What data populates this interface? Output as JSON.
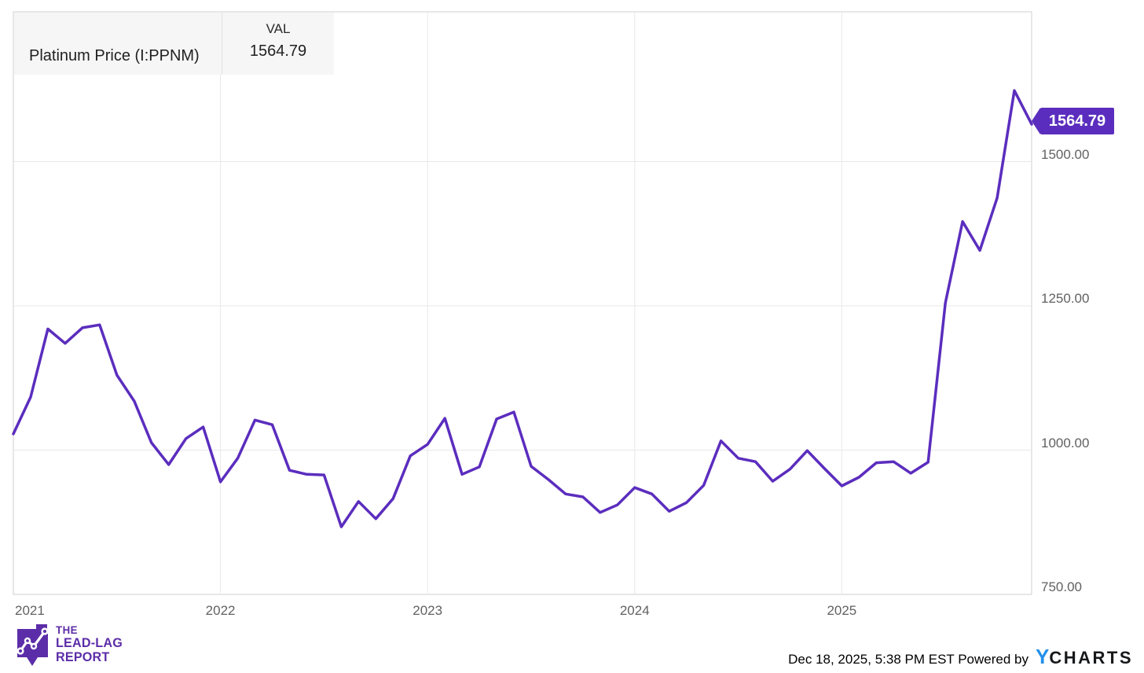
{
  "legend": {
    "series_label": "Platinum Price (I:PPNM)",
    "val_header": "VAL",
    "val_value": "1564.79"
  },
  "value_badge": {
    "text": "1564.79"
  },
  "footer": {
    "credit_text": "Dec 18, 2025, 5:38 PM EST Powered by",
    "brand_y": "Y",
    "brand_rest": "CHARTS",
    "logo_line1": "THE",
    "logo_line2": "LEAD-LAG",
    "logo_line3": "REPORT"
  },
  "colors": {
    "line": "#5B2DBE",
    "badge_bg": "#5B2DBE",
    "logo_purple": "#5C2DA8",
    "brand_blue": "#2490EA",
    "gridline": "#e8e8e8",
    "plot_border": "#cfcfcf",
    "tick_text": "#616161"
  },
  "chart_data": {
    "type": "line",
    "title": "Platinum Price (I:PPNM)",
    "x": [
      "2021-01",
      "2021-02",
      "2021-03",
      "2021-04",
      "2021-05",
      "2021-06",
      "2021-07",
      "2021-08",
      "2021-09",
      "2021-10",
      "2021-11",
      "2021-12",
      "2022-01",
      "2022-02",
      "2022-03",
      "2022-04",
      "2022-05",
      "2022-06",
      "2022-07",
      "2022-08",
      "2022-09",
      "2022-10",
      "2022-11",
      "2022-12",
      "2023-01",
      "2023-02",
      "2023-03",
      "2023-04",
      "2023-05",
      "2023-06",
      "2023-07",
      "2023-08",
      "2023-09",
      "2023-10",
      "2023-11",
      "2023-12",
      "2024-01",
      "2024-02",
      "2024-03",
      "2024-04",
      "2024-05",
      "2024-06",
      "2024-07",
      "2024-08",
      "2024-09",
      "2024-10",
      "2024-11",
      "2024-12",
      "2025-01",
      "2025-02",
      "2025-03",
      "2025-04",
      "2025-05",
      "2025-06",
      "2025-07",
      "2025-08",
      "2025-09",
      "2025-10",
      "2025-11",
      "2025-12"
    ],
    "series": [
      {
        "name": "Platinum Price (I:PPNM)",
        "color": "#5B2DBE",
        "values": [
          1028,
          1092,
          1210,
          1185,
          1212,
          1217,
          1130,
          1085,
          1013,
          975,
          1020,
          1040,
          945,
          986,
          1052,
          1044,
          965,
          958,
          957,
          867,
          911,
          881,
          916,
          990,
          1010,
          1055,
          958,
          971,
          1054,
          1066,
          972,
          949,
          924,
          919,
          892,
          905,
          935,
          924,
          894,
          909,
          939,
          1016,
          986,
          980,
          946,
          967,
          999,
          968,
          938,
          953,
          978,
          980,
          960,
          979,
          1255,
          1396,
          1346,
          1437,
          1623,
          1564.79
        ]
      }
    ],
    "x_ticks": [
      "2021",
      "2022",
      "2023",
      "2024",
      "2025"
    ],
    "y_ticks": [
      "1500.00",
      "1250.00",
      "1000.00",
      "750.00"
    ],
    "ylim": [
      750,
      1760
    ],
    "grid": true,
    "legend_position": "top-left",
    "last_value_label": "1564.79"
  }
}
